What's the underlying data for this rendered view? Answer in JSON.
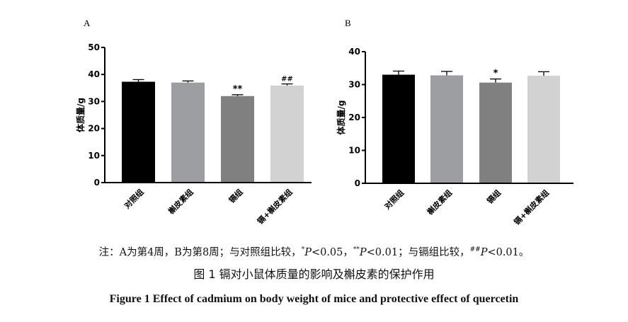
{
  "chart_data": [
    {
      "type": "bar",
      "panel": "A",
      "ylabel": "体质量/g",
      "ylim": [
        0,
        50
      ],
      "yticks": [
        0,
        10,
        20,
        30,
        40,
        50
      ],
      "categories": [
        "对照组",
        "槲皮素组",
        "镉组",
        "镉+槲皮素组"
      ],
      "values": [
        37.3,
        37.0,
        32.0,
        35.9
      ],
      "errors": [
        0.8,
        0.6,
        0.5,
        0.6
      ],
      "annotations": [
        "",
        "",
        "**",
        "##"
      ],
      "colors": [
        "#000000",
        "#9d9ea2",
        "#808080",
        "#d2d2d2"
      ]
    },
    {
      "type": "bar",
      "panel": "B",
      "ylabel": "体质量/g",
      "ylim": [
        0,
        40
      ],
      "yticks": [
        0,
        10,
        20,
        30,
        40
      ],
      "categories": [
        "对照组",
        "槲皮素组",
        "镉组",
        "镉+槲皮素组"
      ],
      "values": [
        33.0,
        32.8,
        30.6,
        32.7
      ],
      "errors": [
        1.1,
        1.2,
        1.1,
        1.2
      ],
      "annotations": [
        "",
        "",
        "*",
        ""
      ],
      "colors": [
        "#000000",
        "#9d9ea2",
        "#808080",
        "#d2d2d2"
      ]
    }
  ],
  "note": {
    "prefix": "注：A为第4周，B为第8周；与对照组比较，",
    "s1": "*",
    "p1": "P",
    "v1": "<0.05，",
    "s2": "**",
    "p2": "P",
    "v2": "<0.01；与镉组比较，",
    "s3": "##",
    "p3": "P",
    "v3": "<0.01。"
  },
  "caption": "图 1  镉对小鼠体质量的影响及槲皮素的保护作用",
  "caption_en": "Figure 1  Effect of cadmium on body weight of mice and protective effect of quercetin"
}
